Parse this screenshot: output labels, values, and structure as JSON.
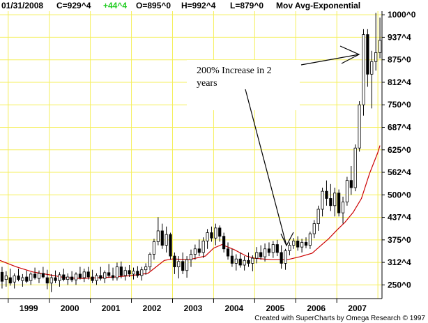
{
  "header": {
    "date": "01/31/2008",
    "close": "C=929^4",
    "change": "+44^4",
    "open": "O=895^0",
    "high": "H=992^4",
    "low": "L=879^0",
    "indicator": "Mov Avg-Exponential"
  },
  "colors": {
    "grid": "#f5ef5a",
    "change_text": "#22cc22",
    "moving_average": "#cc0000",
    "candle": "#000000"
  },
  "footer": "Created with SuperCharts by Omega Research © 1997",
  "chart_data": {
    "type": "candlestick",
    "x_axis_labels": [
      "1999",
      "2000",
      "2001",
      "2002",
      "2003",
      "2004",
      "2005",
      "2006",
      "2007"
    ],
    "y_axis_labels": [
      "1000^0",
      "937^4",
      "875^0",
      "812^4",
      "750^0",
      "687^4",
      "625^0",
      "562^4",
      "500^0",
      "437^4",
      "375^0",
      "312^4",
      "250^0"
    ],
    "y_axis_values": [
      1000,
      937.5,
      875,
      812.5,
      750,
      687.5,
      625,
      562.5,
      500,
      437.5,
      375,
      312.5,
      250
    ],
    "ylim": [
      212,
      1010
    ],
    "x_range": [
      1998.8,
      2008.1
    ],
    "grid": true,
    "annotation": {
      "lines": [
        "200% Increase in 2",
        "years"
      ]
    },
    "series": [
      {
        "name": "Mov Avg-Exponential",
        "type": "line",
        "points": [
          [
            1998.8,
            318
          ],
          [
            1999.2,
            300
          ],
          [
            1999.6,
            286
          ],
          [
            2000.0,
            278
          ],
          [
            2000.4,
            270
          ],
          [
            2000.8,
            268
          ],
          [
            2001.2,
            270
          ],
          [
            2001.6,
            272
          ],
          [
            2002.0,
            276
          ],
          [
            2002.4,
            282
          ],
          [
            2002.6,
            300
          ],
          [
            2002.8,
            318
          ],
          [
            2003.0,
            322
          ],
          [
            2003.4,
            320
          ],
          [
            2003.8,
            330
          ],
          [
            2004.0,
            352
          ],
          [
            2004.2,
            362
          ],
          [
            2004.5,
            348
          ],
          [
            2004.8,
            330
          ],
          [
            2005.0,
            324
          ],
          [
            2005.4,
            320
          ],
          [
            2005.8,
            320
          ],
          [
            2006.1,
            328
          ],
          [
            2006.4,
            338
          ],
          [
            2006.6,
            358
          ],
          [
            2006.8,
            378
          ],
          [
            2007.0,
            402
          ],
          [
            2007.2,
            424
          ],
          [
            2007.4,
            452
          ],
          [
            2007.6,
            490
          ],
          [
            2007.8,
            560
          ],
          [
            2008.0,
            618
          ],
          [
            2008.05,
            637
          ]
        ]
      },
      {
        "name": "candles",
        "type": "candlestick",
        "bars": [
          [
            1998.85,
            285,
            300,
            240,
            260
          ],
          [
            1998.95,
            265,
            288,
            245,
            275
          ],
          [
            1999.05,
            270,
            295,
            248,
            255
          ],
          [
            1999.15,
            258,
            282,
            240,
            275
          ],
          [
            1999.25,
            275,
            295,
            260,
            265
          ],
          [
            1999.35,
            262,
            280,
            245,
            270
          ],
          [
            1999.45,
            272,
            290,
            255,
            260
          ],
          [
            1999.55,
            262,
            285,
            250,
            280
          ],
          [
            1999.65,
            280,
            298,
            265,
            270
          ],
          [
            1999.75,
            268,
            290,
            255,
            282
          ],
          [
            1999.85,
            282,
            300,
            268,
            272
          ],
          [
            1999.95,
            270,
            292,
            238,
            255
          ],
          [
            2000.05,
            255,
            280,
            230,
            270
          ],
          [
            2000.15,
            270,
            290,
            255,
            262
          ],
          [
            2000.25,
            262,
            285,
            245,
            278
          ],
          [
            2000.35,
            278,
            295,
            260,
            265
          ],
          [
            2000.45,
            265,
            282,
            250,
            272
          ],
          [
            2000.55,
            272,
            288,
            258,
            264
          ],
          [
            2000.65,
            264,
            285,
            250,
            280
          ],
          [
            2000.75,
            280,
            300,
            265,
            270
          ],
          [
            2000.85,
            270,
            295,
            258,
            286
          ],
          [
            2000.95,
            286,
            300,
            265,
            272
          ],
          [
            2001.05,
            272,
            292,
            255,
            262
          ],
          [
            2001.15,
            262,
            282,
            250,
            276
          ],
          [
            2001.25,
            276,
            300,
            262,
            268
          ],
          [
            2001.35,
            268,
            290,
            255,
            284
          ],
          [
            2001.45,
            284,
            308,
            270,
            276
          ],
          [
            2001.55,
            276,
            298,
            262,
            270
          ],
          [
            2001.65,
            270,
            312,
            262,
            300
          ],
          [
            2001.75,
            300,
            315,
            268,
            276
          ],
          [
            2001.85,
            276,
            300,
            262,
            290
          ],
          [
            2001.95,
            290,
            305,
            272,
            280
          ],
          [
            2002.05,
            280,
            298,
            265,
            288
          ],
          [
            2002.15,
            288,
            302,
            270,
            276
          ],
          [
            2002.25,
            276,
            300,
            262,
            292
          ],
          [
            2002.35,
            292,
            310,
            278,
            300
          ],
          [
            2002.45,
            300,
            340,
            290,
            335
          ],
          [
            2002.55,
            335,
            378,
            320,
            370
          ],
          [
            2002.65,
            370,
            438,
            360,
            400
          ],
          [
            2002.75,
            400,
            420,
            350,
            360
          ],
          [
            2002.85,
            360,
            412,
            340,
            390
          ],
          [
            2002.95,
            390,
            395,
            320,
            330
          ],
          [
            2003.05,
            330,
            340,
            280,
            300
          ],
          [
            2003.15,
            300,
            330,
            268,
            315
          ],
          [
            2003.25,
            315,
            340,
            280,
            290
          ],
          [
            2003.35,
            290,
            330,
            270,
            320
          ],
          [
            2003.45,
            320,
            348,
            300,
            335
          ],
          [
            2003.55,
            335,
            362,
            320,
            350
          ],
          [
            2003.65,
            350,
            376,
            330,
            340
          ],
          [
            2003.75,
            340,
            382,
            325,
            372
          ],
          [
            2003.85,
            372,
            405,
            350,
            395
          ],
          [
            2003.95,
            395,
            412,
            370,
            380
          ],
          [
            2004.05,
            380,
            420,
            360,
            408
          ],
          [
            2004.15,
            408,
            415,
            370,
            385
          ],
          [
            2004.25,
            385,
            395,
            340,
            350
          ],
          [
            2004.35,
            350,
            368,
            320,
            330
          ],
          [
            2004.45,
            330,
            350,
            300,
            310
          ],
          [
            2004.55,
            310,
            335,
            290,
            322
          ],
          [
            2004.65,
            322,
            340,
            298,
            305
          ],
          [
            2004.75,
            305,
            330,
            290,
            318
          ],
          [
            2004.85,
            318,
            340,
            300,
            310
          ],
          [
            2004.95,
            310,
            332,
            288,
            324
          ],
          [
            2005.05,
            324,
            355,
            310,
            340
          ],
          [
            2005.15,
            340,
            360,
            320,
            328
          ],
          [
            2005.25,
            328,
            365,
            315,
            350
          ],
          [
            2005.35,
            350,
            368,
            330,
            340
          ],
          [
            2005.45,
            340,
            372,
            325,
            362
          ],
          [
            2005.55,
            362,
            375,
            330,
            340
          ],
          [
            2005.65,
            340,
            360,
            295,
            310
          ],
          [
            2005.75,
            310,
            350,
            292,
            345
          ],
          [
            2005.85,
            345,
            368,
            332,
            360
          ],
          [
            2005.95,
            360,
            380,
            350,
            372
          ],
          [
            2006.05,
            372,
            385,
            345,
            355
          ],
          [
            2006.15,
            355,
            378,
            340,
            368
          ],
          [
            2006.25,
            368,
            382,
            352,
            360
          ],
          [
            2006.35,
            360,
            398,
            350,
            392
          ],
          [
            2006.45,
            392,
            430,
            380,
            420
          ],
          [
            2006.55,
            420,
            470,
            400,
            460
          ],
          [
            2006.65,
            460,
            520,
            440,
            510
          ],
          [
            2006.75,
            510,
            540,
            470,
            490
          ],
          [
            2006.85,
            490,
            530,
            455,
            470
          ],
          [
            2006.95,
            470,
            520,
            440,
            505
          ],
          [
            2007.05,
            505,
            515,
            440,
            450
          ],
          [
            2007.15,
            450,
            495,
            420,
            480
          ],
          [
            2007.25,
            480,
            550,
            470,
            540
          ],
          [
            2007.35,
            540,
            580,
            500,
            520
          ],
          [
            2007.45,
            520,
            640,
            510,
            630
          ],
          [
            2007.55,
            630,
            760,
            620,
            750
          ],
          [
            2007.65,
            750,
            960,
            720,
            945
          ],
          [
            2007.75,
            945,
            960,
            800,
            835
          ],
          [
            2007.85,
            835,
            900,
            740,
            870
          ],
          [
            2007.95,
            870,
            1005,
            845,
            895
          ],
          [
            2008.05,
            895,
            992,
            879,
            929
          ]
        ]
      }
    ]
  }
}
